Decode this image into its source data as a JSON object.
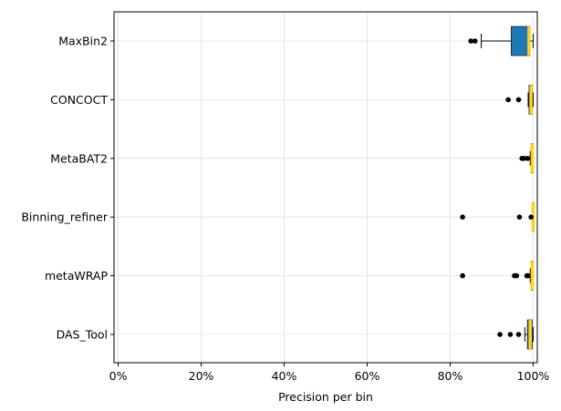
{
  "chart_data": {
    "type": "boxplot",
    "orientation": "horizontal",
    "title": "",
    "xlabel": "Precision per bin",
    "ylabel": "",
    "xlim": [
      -1,
      101
    ],
    "x_ticks": [
      0,
      20,
      40,
      60,
      80,
      100
    ],
    "x_tick_labels": [
      "0%",
      "20%",
      "40%",
      "60%",
      "80%",
      "100%"
    ],
    "grid": true,
    "categories": [
      "MaxBin2",
      "CONCOCT",
      "MetaBAT2",
      "Binning_refiner",
      "metaWRAP",
      "DAS_Tool"
    ],
    "series": [
      {
        "category": "MaxBin2",
        "whisker_low": 87.5,
        "q1": 94.7,
        "median": 99.0,
        "q3": 99.3,
        "whisker_high": 100,
        "outliers": [
          85.0,
          86.0
        ]
      },
      {
        "category": "CONCOCT",
        "whisker_low": 98.8,
        "q1": 99.0,
        "median": 99.5,
        "q3": 99.8,
        "whisker_high": 100,
        "outliers": [
          94.0,
          96.5
        ]
      },
      {
        "category": "MetaBAT2",
        "whisker_low": 99.3,
        "q1": 99.5,
        "median": 99.8,
        "q3": 100,
        "whisker_high": 100,
        "outliers": [
          97.3,
          97.8,
          98.7
        ]
      },
      {
        "category": "Binning_refiner",
        "whisker_low": 99.8,
        "q1": 99.9,
        "median": 100,
        "q3": 100,
        "whisker_high": 100,
        "outliers": [
          83.0,
          96.7,
          99.5
        ]
      },
      {
        "category": "metaWRAP",
        "whisker_low": 99.3,
        "q1": 99.5,
        "median": 99.8,
        "q3": 100,
        "whisker_high": 100,
        "outliers": [
          83.0,
          95.5,
          96.0,
          98.5,
          98.8
        ]
      },
      {
        "category": "DAS_Tool",
        "whisker_low": 98.0,
        "q1": 98.6,
        "median": 99.3,
        "q3": 99.8,
        "whisker_high": 100,
        "outliers": [
          92.0,
          94.5,
          96.5
        ]
      }
    ],
    "colors": {
      "box": "#1f77b4",
      "median": "#ffd11a",
      "outlier": "#000000",
      "grid": "#e0e0e0"
    }
  }
}
